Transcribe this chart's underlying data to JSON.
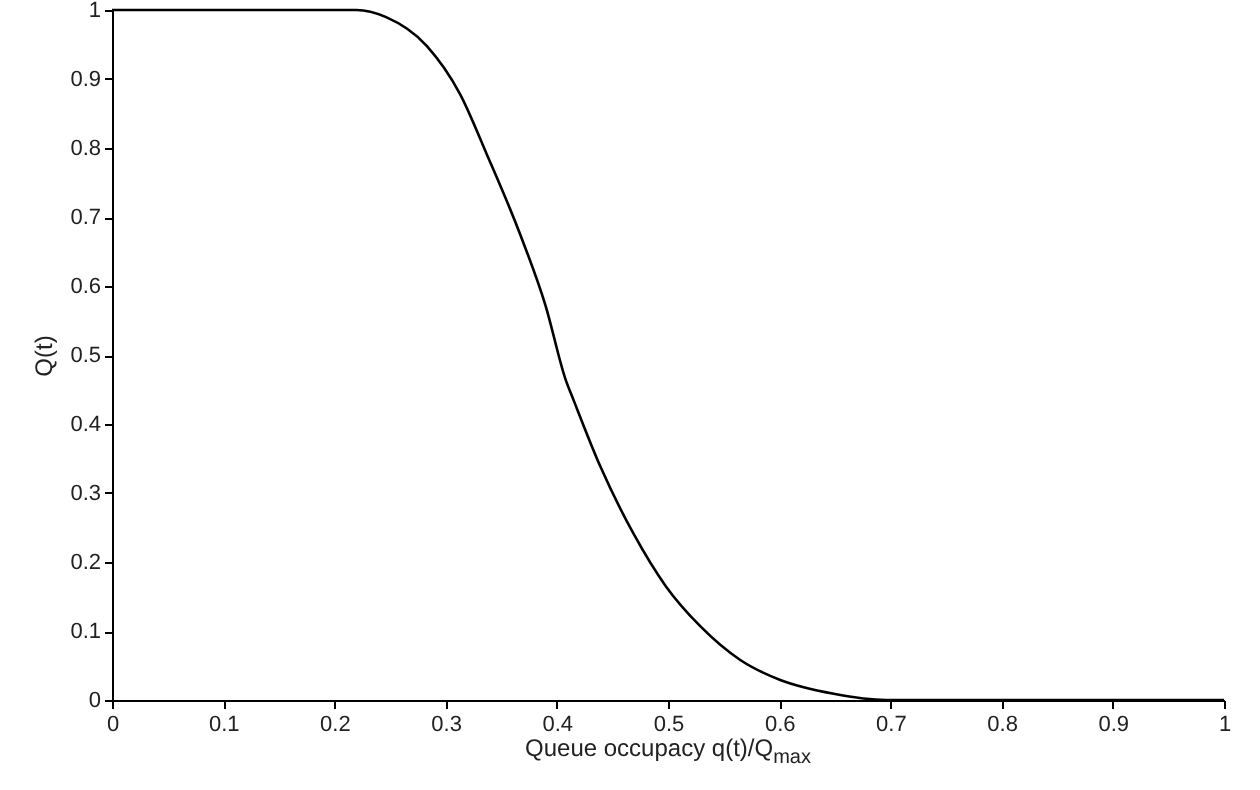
{
  "chart_data": {
    "type": "line",
    "xlabel": "Queue occupacy q(t)/Q$_{max}$",
    "ylabel": "Q(t)",
    "x": [
      0,
      0.1,
      0.2,
      0.22,
      0.246,
      0.283,
      0.313,
      0.337,
      0.367,
      0.39,
      0.408,
      0.415,
      0.439,
      0.469,
      0.498,
      0.529,
      0.565,
      0.601,
      0.649,
      0.696,
      0.75,
      0.85,
      1
    ],
    "series": [
      {
        "color": "#000000",
        "values": [
          1,
          1,
          1,
          1,
          0.99,
          0.948,
          0.878,
          0.791,
          0.675,
          0.571,
          0.464,
          0.435,
          0.339,
          0.241,
          0.165,
          0.107,
          0.058,
          0.029,
          0.009,
          0,
          0,
          0,
          0
        ]
      }
    ],
    "xlim": [
      0,
      1
    ],
    "xticks": [
      0,
      0.1,
      0.2,
      0.3,
      0.4,
      0.5,
      0.6,
      0.7,
      0.8,
      0.9,
      1
    ],
    "ylim": [
      0,
      1
    ],
    "yticks": [
      0,
      0.1,
      0.2,
      0.3,
      0.4,
      0.5,
      0.6,
      0.7,
      0.8,
      0.9,
      1
    ],
    "grid": false,
    "marker": "none",
    "line_style": "solid"
  }
}
